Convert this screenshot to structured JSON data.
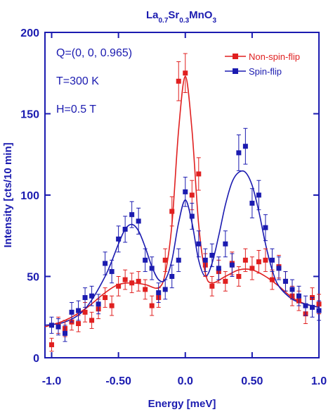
{
  "chart_data": {
    "type": "scatter",
    "title": {
      "main": "La",
      "sub1": "0.7",
      "mid": "Sr",
      "sub2": "0.3",
      "tail": "MnO",
      "sub3": "3"
    },
    "xlabel": "Energy [meV]",
    "ylabel": "Intensity [cts/10 min]",
    "xlim": [
      -1.05,
      1.0
    ],
    "ylim": [
      0,
      200
    ],
    "xticks": [
      -1.0,
      -0.5,
      0.0,
      0.5,
      1.0
    ],
    "xtick_labels": [
      "-1.0",
      "-0.50",
      "0.0",
      "0.50",
      "1.0"
    ],
    "yticks": [
      0,
      50,
      100,
      150,
      200
    ],
    "ytick_labels": [
      "0",
      "50",
      "100",
      "150",
      "200"
    ],
    "annotations": [
      "Q=(0, 0, 0.965)",
      "T=300 K",
      "H=0.5 T"
    ],
    "legend_position": "top-right",
    "series": [
      {
        "name": "Non-spin-flip",
        "color": "#e02020",
        "marker": "square",
        "points": [
          {
            "x": -1.0,
            "y": 8,
            "err": 4
          },
          {
            "x": -0.95,
            "y": 20,
            "err": 5
          },
          {
            "x": -0.9,
            "y": 18,
            "err": 5
          },
          {
            "x": -0.85,
            "y": 22,
            "err": 5
          },
          {
            "x": -0.8,
            "y": 21,
            "err": 5
          },
          {
            "x": -0.75,
            "y": 28,
            "err": 6
          },
          {
            "x": -0.7,
            "y": 23,
            "err": 5
          },
          {
            "x": -0.65,
            "y": 30,
            "err": 6
          },
          {
            "x": -0.6,
            "y": 37,
            "err": 6
          },
          {
            "x": -0.55,
            "y": 32,
            "err": 6
          },
          {
            "x": -0.5,
            "y": 44,
            "err": 6
          },
          {
            "x": -0.45,
            "y": 48,
            "err": 6
          },
          {
            "x": -0.4,
            "y": 46,
            "err": 6
          },
          {
            "x": -0.35,
            "y": 47,
            "err": 6
          },
          {
            "x": -0.3,
            "y": 42,
            "err": 6
          },
          {
            "x": -0.25,
            "y": 32,
            "err": 6
          },
          {
            "x": -0.2,
            "y": 37,
            "err": 6
          },
          {
            "x": -0.15,
            "y": 60,
            "err": 7
          },
          {
            "x": -0.1,
            "y": 90,
            "err": 9
          },
          {
            "x": -0.05,
            "y": 170,
            "err": 12
          },
          {
            "x": 0.0,
            "y": 175,
            "err": 12
          },
          {
            "x": 0.05,
            "y": 100,
            "err": 9
          },
          {
            "x": 0.1,
            "y": 113,
            "err": 10
          },
          {
            "x": 0.15,
            "y": 57,
            "err": 7
          },
          {
            "x": 0.2,
            "y": 44,
            "err": 6
          },
          {
            "x": 0.25,
            "y": 53,
            "err": 7
          },
          {
            "x": 0.3,
            "y": 47,
            "err": 6
          },
          {
            "x": 0.35,
            "y": 58,
            "err": 7
          },
          {
            "x": 0.4,
            "y": 50,
            "err": 6
          },
          {
            "x": 0.45,
            "y": 60,
            "err": 7
          },
          {
            "x": 0.5,
            "y": 55,
            "err": 7
          },
          {
            "x": 0.55,
            "y": 59,
            "err": 7
          },
          {
            "x": 0.6,
            "y": 60,
            "err": 7
          },
          {
            "x": 0.65,
            "y": 48,
            "err": 6
          },
          {
            "x": 0.7,
            "y": 56,
            "err": 7
          },
          {
            "x": 0.75,
            "y": 47,
            "err": 6
          },
          {
            "x": 0.8,
            "y": 38,
            "err": 6
          },
          {
            "x": 0.85,
            "y": 35,
            "err": 6
          },
          {
            "x": 0.9,
            "y": 27,
            "err": 6
          },
          {
            "x": 0.95,
            "y": 37,
            "err": 6
          },
          {
            "x": 1.0,
            "y": 33,
            "err": 6
          }
        ],
        "fit": [
          {
            "x": -1.05,
            "y": 19
          },
          {
            "x": -0.9,
            "y": 23
          },
          {
            "x": -0.75,
            "y": 30
          },
          {
            "x": -0.6,
            "y": 40
          },
          {
            "x": -0.5,
            "y": 45
          },
          {
            "x": -0.4,
            "y": 46
          },
          {
            "x": -0.3,
            "y": 45
          },
          {
            "x": -0.2,
            "y": 43
          },
          {
            "x": -0.15,
            "y": 52
          },
          {
            "x": -0.1,
            "y": 82
          },
          {
            "x": -0.05,
            "y": 140
          },
          {
            "x": 0.0,
            "y": 173
          },
          {
            "x": 0.05,
            "y": 140
          },
          {
            "x": 0.1,
            "y": 82
          },
          {
            "x": 0.15,
            "y": 52
          },
          {
            "x": 0.2,
            "y": 46
          },
          {
            "x": 0.3,
            "y": 50
          },
          {
            "x": 0.4,
            "y": 54
          },
          {
            "x": 0.5,
            "y": 54
          },
          {
            "x": 0.6,
            "y": 50
          },
          {
            "x": 0.7,
            "y": 44
          },
          {
            "x": 0.8,
            "y": 37
          },
          {
            "x": 0.9,
            "y": 33
          },
          {
            "x": 1.0,
            "y": 31
          }
        ]
      },
      {
        "name": "Spin-flip",
        "color": "#1b1bb0",
        "marker": "square",
        "points": [
          {
            "x": -1.0,
            "y": 20,
            "err": 5
          },
          {
            "x": -0.95,
            "y": 19,
            "err": 5
          },
          {
            "x": -0.9,
            "y": 15,
            "err": 5
          },
          {
            "x": -0.85,
            "y": 28,
            "err": 6
          },
          {
            "x": -0.8,
            "y": 29,
            "err": 6
          },
          {
            "x": -0.75,
            "y": 37,
            "err": 6
          },
          {
            "x": -0.7,
            "y": 38,
            "err": 6
          },
          {
            "x": -0.65,
            "y": 33,
            "err": 6
          },
          {
            "x": -0.6,
            "y": 58,
            "err": 7
          },
          {
            "x": -0.55,
            "y": 53,
            "err": 7
          },
          {
            "x": -0.5,
            "y": 73,
            "err": 8
          },
          {
            "x": -0.45,
            "y": 79,
            "err": 8
          },
          {
            "x": -0.4,
            "y": 88,
            "err": 8
          },
          {
            "x": -0.35,
            "y": 84,
            "err": 8
          },
          {
            "x": -0.3,
            "y": 60,
            "err": 7
          },
          {
            "x": -0.25,
            "y": 55,
            "err": 7
          },
          {
            "x": -0.2,
            "y": 40,
            "err": 6
          },
          {
            "x": -0.15,
            "y": 42,
            "err": 6
          },
          {
            "x": -0.1,
            "y": 50,
            "err": 7
          },
          {
            "x": -0.05,
            "y": 60,
            "err": 7
          },
          {
            "x": 0.0,
            "y": 102,
            "err": 9
          },
          {
            "x": 0.05,
            "y": 87,
            "err": 8
          },
          {
            "x": 0.1,
            "y": 70,
            "err": 8
          },
          {
            "x": 0.15,
            "y": 60,
            "err": 7
          },
          {
            "x": 0.2,
            "y": 63,
            "err": 7
          },
          {
            "x": 0.25,
            "y": 55,
            "err": 7
          },
          {
            "x": 0.3,
            "y": 70,
            "err": 8
          },
          {
            "x": 0.35,
            "y": 57,
            "err": 7
          },
          {
            "x": 0.4,
            "y": 126,
            "err": 11
          },
          {
            "x": 0.45,
            "y": 130,
            "err": 11
          },
          {
            "x": 0.5,
            "y": 95,
            "err": 9
          },
          {
            "x": 0.55,
            "y": 100,
            "err": 9
          },
          {
            "x": 0.6,
            "y": 80,
            "err": 8
          },
          {
            "x": 0.65,
            "y": 60,
            "err": 7
          },
          {
            "x": 0.7,
            "y": 55,
            "err": 7
          },
          {
            "x": 0.75,
            "y": 47,
            "err": 6
          },
          {
            "x": 0.8,
            "y": 42,
            "err": 6
          },
          {
            "x": 0.85,
            "y": 38,
            "err": 6
          },
          {
            "x": 0.9,
            "y": 32,
            "err": 6
          },
          {
            "x": 0.95,
            "y": 31,
            "err": 6
          },
          {
            "x": 1.0,
            "y": 29,
            "err": 6
          }
        ],
        "fit": [
          {
            "x": -1.05,
            "y": 20
          },
          {
            "x": -0.9,
            "y": 22
          },
          {
            "x": -0.75,
            "y": 30
          },
          {
            "x": -0.6,
            "y": 50
          },
          {
            "x": -0.5,
            "y": 70
          },
          {
            "x": -0.45,
            "y": 79
          },
          {
            "x": -0.4,
            "y": 82
          },
          {
            "x": -0.35,
            "y": 78
          },
          {
            "x": -0.3,
            "y": 68
          },
          {
            "x": -0.25,
            "y": 56
          },
          {
            "x": -0.2,
            "y": 48
          },
          {
            "x": -0.15,
            "y": 48
          },
          {
            "x": -0.1,
            "y": 60
          },
          {
            "x": -0.05,
            "y": 83
          },
          {
            "x": 0.0,
            "y": 97
          },
          {
            "x": 0.05,
            "y": 83
          },
          {
            "x": 0.1,
            "y": 60
          },
          {
            "x": 0.15,
            "y": 50
          },
          {
            "x": 0.2,
            "y": 58
          },
          {
            "x": 0.25,
            "y": 75
          },
          {
            "x": 0.3,
            "y": 94
          },
          {
            "x": 0.35,
            "y": 108
          },
          {
            "x": 0.4,
            "y": 114
          },
          {
            "x": 0.45,
            "y": 114
          },
          {
            "x": 0.5,
            "y": 106
          },
          {
            "x": 0.55,
            "y": 90
          },
          {
            "x": 0.6,
            "y": 70
          },
          {
            "x": 0.65,
            "y": 54
          },
          {
            "x": 0.7,
            "y": 44
          },
          {
            "x": 0.8,
            "y": 36
          },
          {
            "x": 0.9,
            "y": 33
          },
          {
            "x": 1.0,
            "y": 31
          }
        ]
      }
    ]
  }
}
